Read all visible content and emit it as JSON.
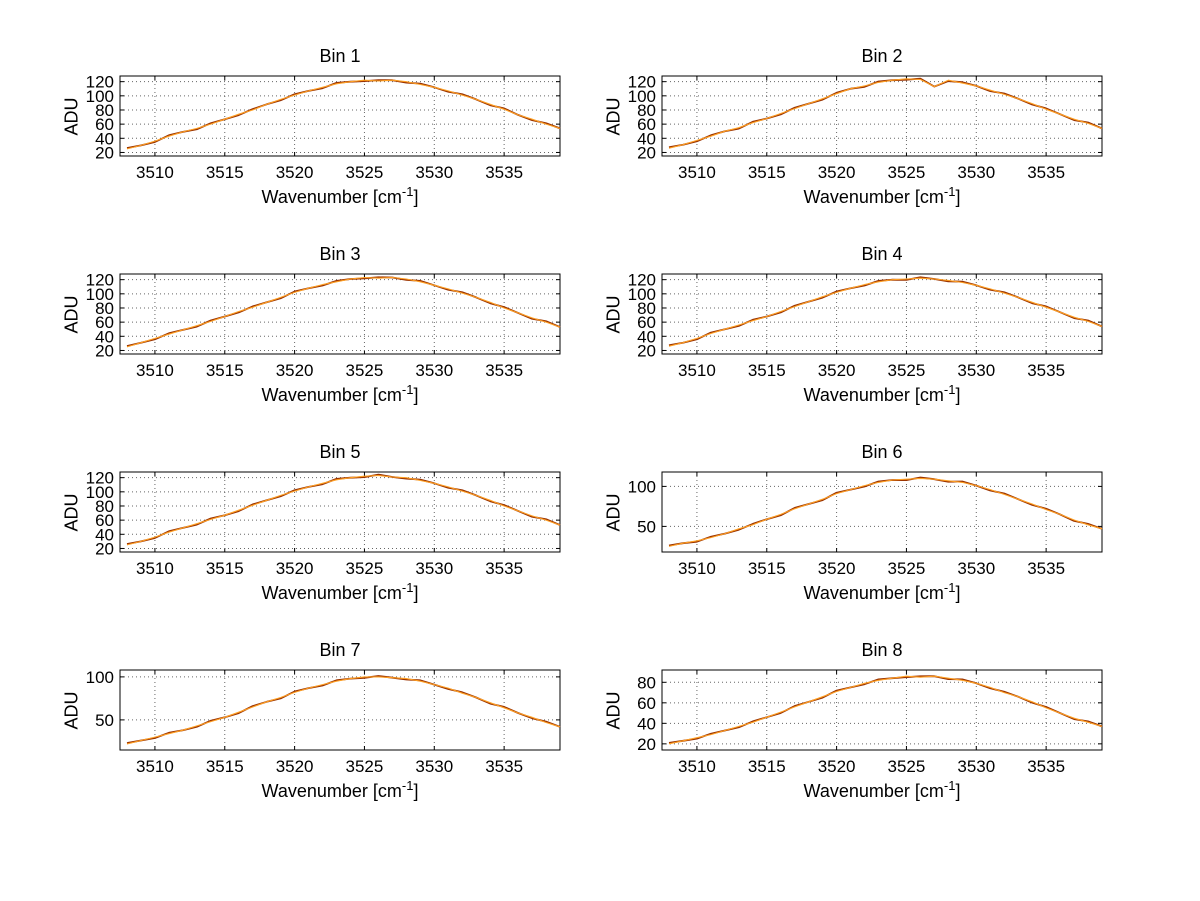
{
  "figure": {
    "background": "#ffffff"
  },
  "colors": {
    "trace_top": "#ffa023",
    "trace_under": "#9a3300",
    "grid": "#666666",
    "axis": "#000000",
    "text": "#000000",
    "background": "#ffffff"
  },
  "chart_data": {
    "type": "line",
    "layout": "4x2 grid of subplots",
    "xlabel": "Wavenumber [cm^-1]",
    "xlabel_parts": [
      "Wavenumber [cm",
      "-1",
      "]"
    ],
    "ylabel": "ADU",
    "grid": true,
    "grid_style": "dotted",
    "series_note": "each subplot has two nearly identical overlaid traces: a dark red/brown trace under an orange trace",
    "x": [
      3508,
      3509,
      3510,
      3511,
      3512,
      3513,
      3514,
      3515,
      3516,
      3517,
      3518,
      3519,
      3520,
      3521,
      3522,
      3523,
      3524,
      3525,
      3526,
      3527,
      3528,
      3529,
      3530,
      3531,
      3532,
      3533,
      3534,
      3535,
      3536,
      3537,
      3538,
      3539
    ],
    "xlim": [
      3507.5,
      3539
    ],
    "xticks": [
      3510,
      3515,
      3520,
      3525,
      3530,
      3535
    ],
    "subplots": [
      {
        "title": "Bin 1",
        "yticks": [
          20,
          40,
          60,
          80,
          100,
          120
        ],
        "ylim": [
          15,
          128
        ],
        "y": [
          25,
          30,
          36,
          43,
          49,
          54,
          60,
          67,
          74,
          80,
          88,
          95,
          101,
          107,
          112,
          117,
          120,
          122,
          121,
          122,
          120,
          116,
          112,
          107,
          101,
          95,
          88,
          81,
          73,
          67,
          60,
          54
        ]
      },
      {
        "title": "Bin 2",
        "yticks": [
          20,
          40,
          60,
          80,
          100,
          120
        ],
        "ylim": [
          15,
          128
        ],
        "y": [
          26,
          31,
          37,
          43,
          50,
          55,
          62,
          68,
          75,
          82,
          89,
          96,
          103,
          110,
          114,
          119,
          122,
          124,
          123,
          113,
          122,
          118,
          114,
          108,
          102,
          96,
          89,
          81,
          74,
          67,
          61,
          54
        ]
      },
      {
        "title": "Bin 3",
        "yticks": [
          20,
          40,
          60,
          80,
          100,
          120
        ],
        "ylim": [
          15,
          128
        ],
        "y": [
          25,
          31,
          37,
          43,
          49,
          55,
          61,
          68,
          75,
          81,
          88,
          95,
          102,
          108,
          113,
          117,
          121,
          123,
          122,
          123,
          121,
          117,
          112,
          107,
          101,
          95,
          88,
          80,
          73,
          66,
          60,
          53
        ]
      },
      {
        "title": "Bin 4",
        "yticks": [
          20,
          40,
          60,
          80,
          100,
          120
        ],
        "ylim": [
          15,
          128
        ],
        "y": [
          26,
          31,
          37,
          44,
          50,
          56,
          62,
          68,
          75,
          82,
          89,
          96,
          102,
          108,
          113,
          117,
          120,
          121,
          122,
          121,
          119,
          116,
          112,
          107,
          101,
          95,
          88,
          81,
          74,
          67,
          61,
          54
        ]
      },
      {
        "title": "Bin 5",
        "yticks": [
          20,
          40,
          60,
          80,
          100,
          120
        ],
        "ylim": [
          15,
          128
        ],
        "y": [
          25,
          30,
          36,
          43,
          49,
          55,
          61,
          67,
          74,
          81,
          88,
          95,
          101,
          107,
          112,
          117,
          120,
          122,
          123,
          121,
          120,
          116,
          112,
          107,
          101,
          95,
          88,
          80,
          73,
          66,
          60,
          53
        ]
      },
      {
        "title": "Bin 6",
        "yticks": [
          50,
          100
        ],
        "ylim": [
          18,
          118
        ],
        "y": [
          25,
          29,
          32,
          36,
          41,
          47,
          52,
          59,
          65,
          72,
          78,
          84,
          91,
          96,
          101,
          105,
          108,
          109,
          110,
          109,
          107,
          105,
          101,
          96,
          90,
          84,
          78,
          71,
          65,
          58,
          52,
          47
        ]
      },
      {
        "title": "Bin 7",
        "yticks": [
          50,
          100
        ],
        "ylim": [
          15,
          108
        ],
        "y": [
          22,
          26,
          30,
          34,
          38,
          43,
          48,
          53,
          59,
          65,
          71,
          76,
          82,
          87,
          91,
          95,
          98,
          100,
          100,
          99,
          98,
          95,
          91,
          87,
          81,
          76,
          70,
          64,
          58,
          53,
          47,
          42
        ]
      },
      {
        "title": "Bin 8",
        "yticks": [
          20,
          40,
          60,
          80
        ],
        "ylim": [
          14,
          92
        ],
        "y": [
          20,
          23,
          26,
          29,
          33,
          37,
          41,
          46,
          51,
          56,
          61,
          66,
          71,
          75,
          79,
          82,
          84,
          86,
          85,
          86,
          84,
          82,
          79,
          75,
          70,
          66,
          61,
          55,
          50,
          45,
          41,
          37
        ]
      }
    ]
  }
}
